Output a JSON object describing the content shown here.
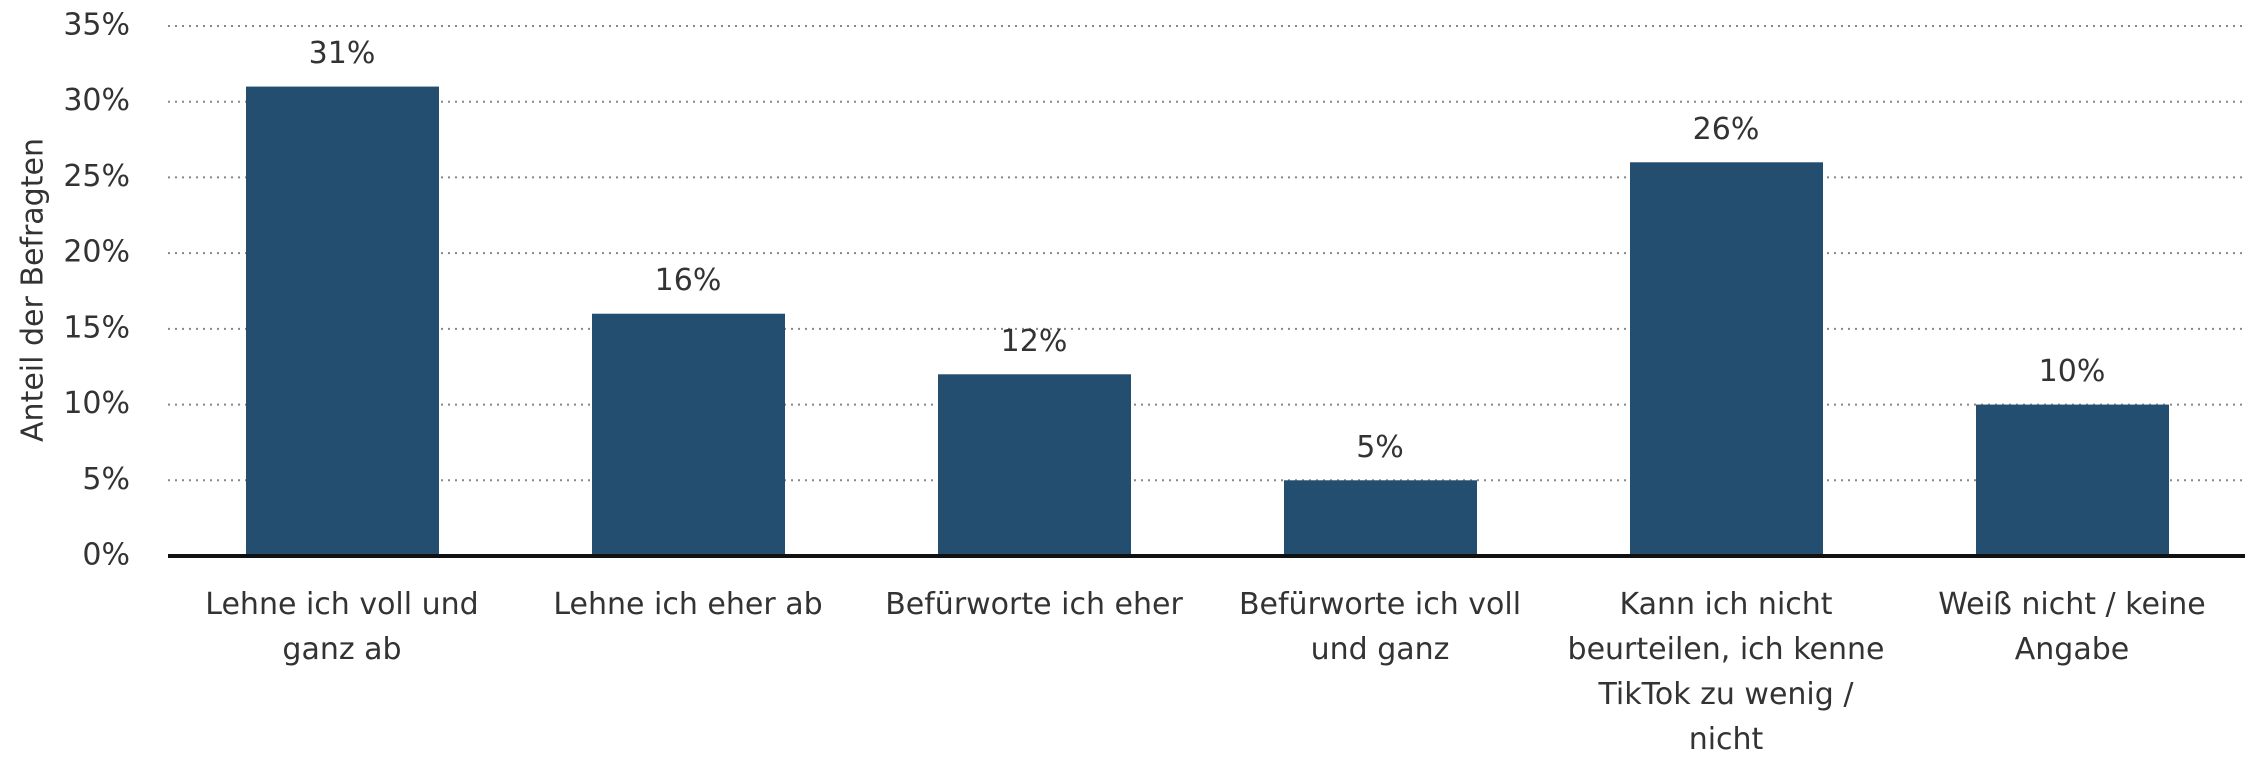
{
  "chart_data": {
    "type": "bar",
    "y_label": "Anteil der Befragten",
    "categories": [
      "Lehne ich voll und ganz ab",
      "Lehne ich eher ab",
      "Befürworte ich eher",
      "Befürworte ich voll und ganz",
      "Kann ich nicht beurteilen, ich kenne TikTok zu wenig / nicht",
      "Weiß nicht / keine Angabe"
    ],
    "values": [
      31,
      16,
      12,
      5,
      26,
      10
    ],
    "value_labels": [
      "31%",
      "16%",
      "12%",
      "5%",
      "26%",
      "10%"
    ],
    "color": "#234e70",
    "ylim": [
      0,
      35
    ],
    "yticks": [
      {
        "value": 0,
        "label": "0%"
      },
      {
        "value": 5,
        "label": "5%"
      },
      {
        "value": 10,
        "label": "10%"
      },
      {
        "value": 15,
        "label": "15%"
      },
      {
        "value": 20,
        "label": "20%"
      },
      {
        "value": 25,
        "label": "25%"
      },
      {
        "value": 30,
        "label": "30%"
      },
      {
        "value": 35,
        "label": "35%"
      }
    ],
    "grid": true
  }
}
